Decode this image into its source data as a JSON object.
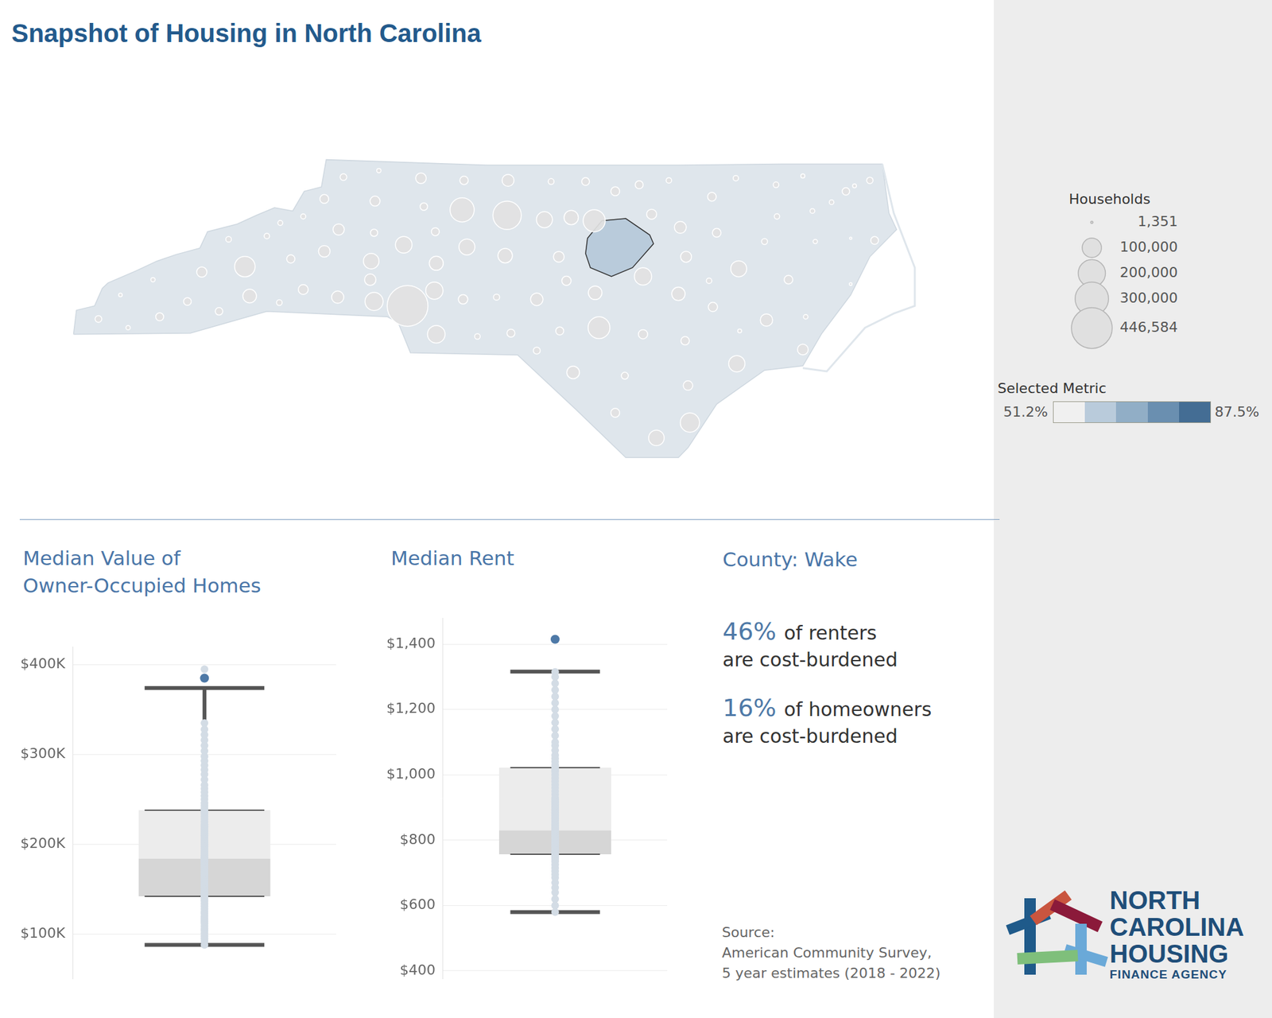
{
  "title": "Snapshot of Housing in North Carolina",
  "chart_data": [
    {
      "type": "map",
      "xlim": [
        -84.4,
        -75.4
      ],
      "ylim": [
        33.8,
        36.62
      ],
      "tick_labels": false,
      "color": "#dfe6ec",
      "state_outline": [
        [
          -84.32,
          34.99
        ],
        [
          -84.29,
          35.21
        ],
        [
          -84.1,
          35.25
        ],
        [
          -84.02,
          35.41
        ],
        [
          -83.96,
          35.46
        ],
        [
          -83.67,
          35.57
        ],
        [
          -83.45,
          35.66
        ],
        [
          -83.25,
          35.72
        ],
        [
          -83.0,
          35.78
        ],
        [
          -82.92,
          35.93
        ],
        [
          -82.61,
          36.0
        ],
        [
          -82.41,
          36.08
        ],
        [
          -82.22,
          36.15
        ],
        [
          -82.03,
          36.12
        ],
        [
          -81.91,
          36.3
        ],
        [
          -81.73,
          36.34
        ],
        [
          -81.68,
          36.59
        ],
        [
          -80.0,
          36.54
        ],
        [
          -78.0,
          36.54
        ],
        [
          -76.92,
          36.55
        ],
        [
          -75.87,
          36.55
        ],
        [
          -75.8,
          36.1
        ],
        [
          -75.72,
          35.95
        ],
        [
          -76.0,
          35.7
        ],
        [
          -76.2,
          35.35
        ],
        [
          -76.5,
          35.0
        ],
        [
          -76.7,
          34.7
        ],
        [
          -77.1,
          34.66
        ],
        [
          -77.6,
          34.35
        ],
        [
          -77.9,
          33.95
        ],
        [
          -78.0,
          33.86
        ],
        [
          -78.55,
          33.86
        ],
        [
          -79.07,
          34.3
        ],
        [
          -79.68,
          34.8
        ],
        [
          -80.8,
          34.82
        ],
        [
          -80.93,
          35.1
        ],
        [
          -81.04,
          35.15
        ],
        [
          -82.3,
          35.2
        ],
        [
          -83.1,
          35.0
        ]
      ],
      "barrier_islands": [
        [
          -75.87,
          36.55
        ],
        [
          -75.75,
          36.1
        ],
        [
          -75.53,
          35.6
        ],
        [
          -75.53,
          35.25
        ],
        [
          -75.75,
          35.18
        ],
        [
          -76.05,
          35.05
        ],
        [
          -76.45,
          34.65
        ],
        [
          -76.7,
          34.68
        ]
      ],
      "selected_county": {
        "color": "#b9cbdb",
        "outline": [
          [
            -78.95,
            35.87
          ],
          [
            -78.8,
            36.03
          ],
          [
            -78.55,
            36.05
          ],
          [
            -78.3,
            35.9
          ],
          [
            -78.26,
            35.82
          ],
          [
            -78.48,
            35.6
          ],
          [
            -78.7,
            35.52
          ],
          [
            -78.92,
            35.6
          ],
          [
            -78.97,
            35.73
          ]
        ]
      },
      "bubbles": {
        "x": [
          -80.83,
          -79.79,
          -80.26,
          -78.88,
          -78.83,
          -82.53,
          -77.88,
          -80.53,
          -81.18,
          -80.55,
          -78.37,
          -77.39,
          -80.87,
          -77.37,
          -79.4,
          -80.21,
          -78.23,
          -79.12,
          -81.21,
          -80.53,
          -79.81,
          -78.87,
          -78.0,
          -82.48,
          -81.56,
          -77.08,
          -79.1,
          -77.98,
          -79.78,
          -79.48,
          -81.7,
          -81.55,
          -77.92,
          -81.22,
          -76.7,
          -79.25,
          -80.69,
          -82.98,
          -81.17,
          -79.17,
          -80.25,
          -78.37,
          -78.66,
          -77.64,
          -77.65,
          -81.92,
          -78.28,
          -78.66,
          -80.24,
          -81.7,
          -76.85,
          -77.9,
          -77.93,
          -77.6,
          -79.75,
          -80.54,
          -83.13,
          -83.42,
          -82.05,
          -81.18,
          -81.5,
          -78.97,
          -78.41,
          -80.66,
          -82.8,
          -84.06,
          -76.25,
          -75.95,
          -79.48,
          -78.56,
          -79.24,
          -79.9,
          -80.1,
          -77.1,
          -76.97,
          -76.98,
          -77.4,
          -78.1,
          -79.33,
          -77.68,
          -77.36,
          -76.67,
          -76.2,
          -76.2,
          -76.57,
          -76.6,
          -76.4,
          -76.7,
          -76.0,
          -76.16,
          -83.83,
          -83.49,
          -83.75,
          -82.17,
          -82.7,
          -82.3,
          -82.16,
          -81.92,
          -81.13
        ],
        "y": [
          35.25,
          36.08,
          36.13,
          36.03,
          35.05,
          35.61,
          34.18,
          34.99,
          35.29,
          35.39,
          35.52,
          34.72,
          35.81,
          35.59,
          36.04,
          35.79,
          34.04,
          36.06,
          35.66,
          35.64,
          35.71,
          35.37,
          35.36,
          35.34,
          35.33,
          35.12,
          34.64,
          35.97,
          36.4,
          35.31,
          35.75,
          35.95,
          35.7,
          35.49,
          34.85,
          35.7,
          36.42,
          35.56,
          36.21,
          35.48,
          35.31,
          34.99,
          34.27,
          35.24,
          36.25,
          35.4,
          36.09,
          36.3,
          36.4,
          36.23,
          35.49,
          34.52,
          34.93,
          35.92,
          35.0,
          35.93,
          35.29,
          35.15,
          35.68,
          35.92,
          36.43,
          36.39,
          36.36,
          36.16,
          35.2,
          35.13,
          36.3,
          35.85,
          34.84,
          34.61,
          35.02,
          35.33,
          34.97,
          35.84,
          36.07,
          36.36,
          36.42,
          36.4,
          36.39,
          35.48,
          35.02,
          35.15,
          35.45,
          35.87,
          35.84,
          36.12,
          36.2,
          36.44,
          36.4,
          36.35,
          35.35,
          35.49,
          35.05,
          35.28,
          35.86,
          35.89,
          36.01,
          36.07,
          36.49
        ],
        "values": [
          446584,
          216000,
          157000,
          131000,
          128000,
          113000,
          99000,
          83000,
          88000,
          80000,
          80000,
          71000,
          74000,
          68000,
          69000,
          68000,
          65000,
          55000,
          65000,
          53000,
          56000,
          50000,
          48000,
          50000,
          40000,
          41000,
          43000,
          38000,
          38000,
          42000,
          36000,
          34000,
          32000,
          35000,
          31000,
          31000,
          30000,
          28000,
          27000,
          23000,
          24000,
          23000,
          21000,
          23000,
          20000,
          26000,
          27000,
          21000,
          19000,
          21000,
          20000,
          24000,
          19000,
          20000,
          17000,
          17000,
          16000,
          17000,
          18000,
          14000,
          12000,
          16000,
          17000,
          15000,
          15000,
          12000,
          15000,
          16000,
          13000,
          13000,
          17000,
          10000,
          8500,
          9500,
          7700,
          8500,
          7800,
          8000,
          9000,
          8000,
          4000,
          5500,
          1900,
          1351,
          5000,
          6000,
          5700,
          4500,
          11000,
          4000,
          3500,
          5000,
          5000,
          8500,
          8500,
          8000,
          6500,
          6800,
          5000
        ]
      },
      "size_legend": {
        "title": "Households",
        "values": [
          1351,
          100000,
          200000,
          300000,
          446584
        ],
        "value_labels": [
          "1,351",
          "100,000",
          "200,000",
          "300,000",
          "446,584"
        ]
      },
      "color_legend": {
        "title": "Selected Metric",
        "range": [
          {
            "value": 51.2,
            "label": "51.2%"
          },
          {
            "value": 87.5,
            "label": "87.5%"
          }
        ],
        "colors": [
          "#f0f0f0",
          "#b9cbdb",
          "#91aec6",
          "#6a8fb0",
          "#446d94"
        ]
      }
    },
    {
      "type": "box",
      "title": [
        "Median Value of",
        "Owner-Occupied Homes"
      ],
      "ylim": [
        50000,
        420000
      ],
      "yticks": [
        {
          "value": 100000,
          "label": "$100K"
        },
        {
          "value": 200000,
          "label": "$200K"
        },
        {
          "value": 300000,
          "label": "$300K"
        },
        {
          "value": 400000,
          "label": "$400K"
        }
      ],
      "grid": true,
      "tick_labels": "y",
      "whisker_low": 88000,
      "q1": 142000,
      "median": 184000,
      "q3": 238000,
      "whisker_high": 374000,
      "color": "#d3dce5",
      "values": [
        88000,
        92000,
        95000,
        98000,
        101000,
        104000,
        106000,
        109000,
        112000,
        114000,
        116000,
        118000,
        120000,
        123000,
        125000,
        128000,
        131000,
        134000,
        137000,
        139000,
        141000,
        142000,
        144000,
        146000,
        148000,
        150000,
        152000,
        154000,
        156000,
        158000,
        160000,
        162000,
        164000,
        166000,
        168000,
        170000,
        172000,
        174000,
        176000,
        178000,
        180000,
        181000,
        182000,
        183000,
        184000,
        185000,
        186000,
        188000,
        190000,
        192000,
        194000,
        196000,
        198000,
        200000,
        202000,
        204000,
        206000,
        208000,
        210000,
        212000,
        214000,
        216000,
        218000,
        220000,
        222000,
        225000,
        228000,
        231000,
        234000,
        236000,
        238000,
        240000,
        243000,
        246000,
        250000,
        254000,
        258000,
        262000,
        266000,
        272000,
        278000,
        283000,
        288000,
        293000,
        298000,
        304000,
        310000,
        316000,
        322000,
        328000,
        335000,
        395000
      ],
      "highlight": {
        "value": 385000,
        "color": "#4e79a7"
      }
    },
    {
      "type": "box",
      "title": "Median Rent",
      "ylim": [
        375,
        1480
      ],
      "yticks": [
        {
          "value": 400,
          "label": "$400"
        },
        {
          "value": 600,
          "label": "$600"
        },
        {
          "value": 800,
          "label": "$800"
        },
        {
          "value": 1000,
          "label": "$1,000"
        },
        {
          "value": 1200,
          "label": "$1,200"
        },
        {
          "value": 1400,
          "label": "$1,400"
        }
      ],
      "grid": true,
      "tick_labels": "y",
      "whisker_low": 580,
      "q1": 757,
      "median": 830,
      "q3": 1022,
      "whisker_high": 1316,
      "color": "#d3dce5",
      "values": [
        580,
        600,
        620,
        640,
        655,
        670,
        685,
        695,
        705,
        715,
        725,
        735,
        742,
        748,
        752,
        757,
        760,
        765,
        770,
        775,
        780,
        785,
        790,
        795,
        800,
        805,
        810,
        815,
        820,
        825,
        828,
        830,
        833,
        836,
        840,
        845,
        850,
        855,
        860,
        865,
        870,
        875,
        880,
        885,
        890,
        895,
        900,
        905,
        910,
        915,
        920,
        925,
        930,
        940,
        950,
        960,
        970,
        980,
        990,
        1000,
        1010,
        1015,
        1022,
        1030,
        1040,
        1050,
        1060,
        1075,
        1090,
        1100,
        1120,
        1140,
        1160,
        1180,
        1200,
        1220,
        1240,
        1260,
        1280,
        1300,
        1315
      ],
      "highlight": {
        "value": 1415,
        "color": "#4e79a7"
      }
    }
  ],
  "summary": {
    "title": "County: Wake",
    "stats": [
      {
        "figure": "46%",
        "text": [
          "of renters",
          "are cost-burdened"
        ]
      },
      {
        "figure": "16%",
        "text": [
          "of homeowners",
          "are cost-burdened"
        ]
      }
    ]
  },
  "source": [
    "Source:",
    "American Community Survey,",
    "5 year estimates (2018 - 2022)"
  ],
  "logo": [
    "NORTH",
    "CAROLINA",
    "HOUSING",
    "FINANCE AGENCY"
  ]
}
